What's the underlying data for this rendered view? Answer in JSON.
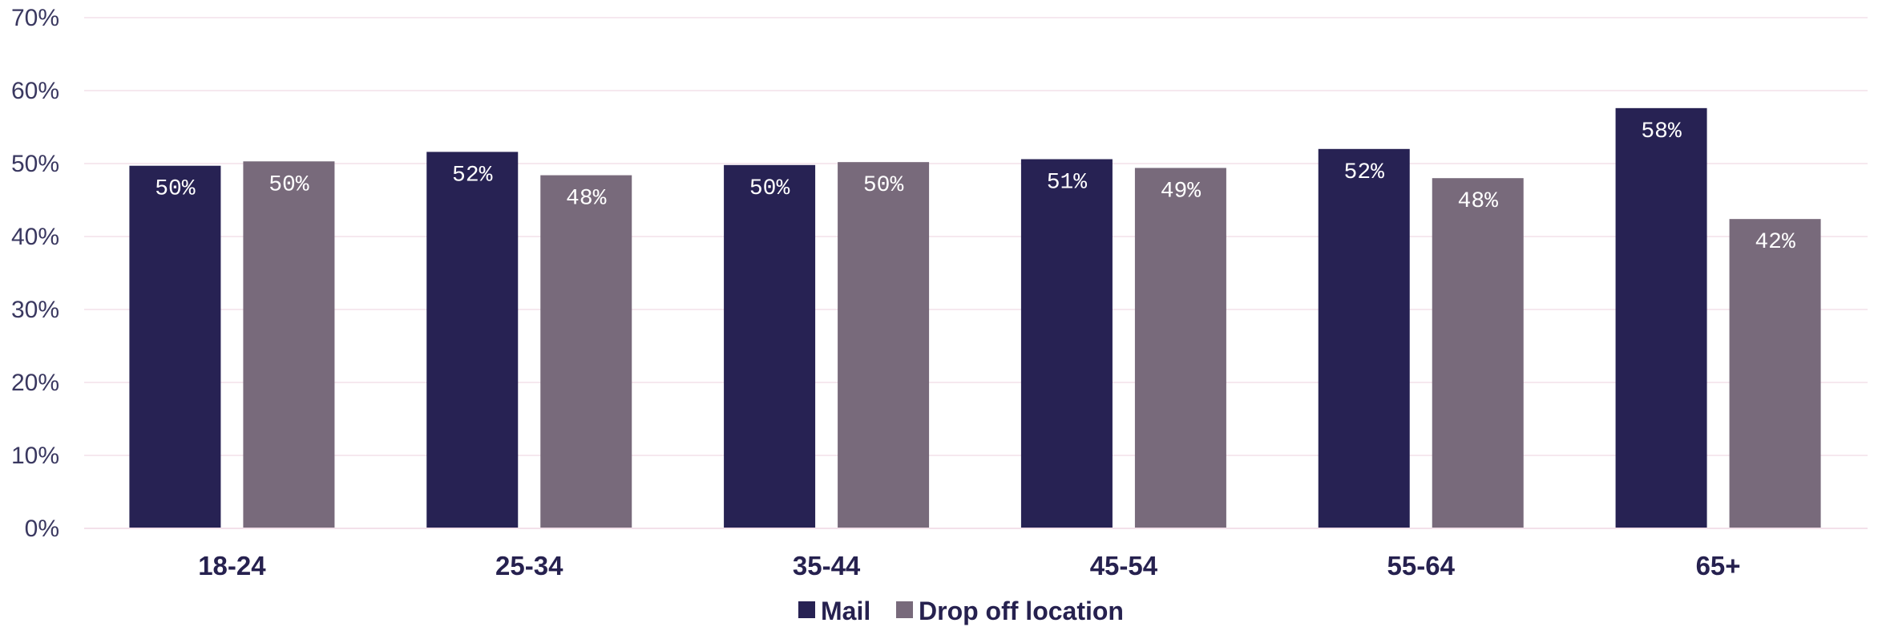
{
  "chart_data": {
    "type": "bar",
    "categories": [
      "18-24",
      "25-34",
      "35-44",
      "45-54",
      "55-64",
      "65+"
    ],
    "series": [
      {
        "name": "Mail",
        "color": "#272253",
        "values": [
          49.7,
          51.6,
          49.8,
          50.6,
          52.0,
          57.6
        ],
        "labels": [
          "50%",
          "52%",
          "50%",
          "51%",
          "52%",
          "58%"
        ]
      },
      {
        "name": "Drop off location",
        "color": "#786a7b",
        "values": [
          50.3,
          48.4,
          50.2,
          49.4,
          48.0,
          42.4
        ],
        "labels": [
          "50%",
          "48%",
          "50%",
          "49%",
          "48%",
          "42%"
        ]
      }
    ],
    "y_ticks": [
      "0%",
      "10%",
      "20%",
      "30%",
      "40%",
      "50%",
      "60%",
      "70%"
    ],
    "ylim": [
      0,
      70
    ],
    "grid": true,
    "grid_color": "#f3e1ea",
    "legend": "bottom-center",
    "title": "",
    "xlabel": "",
    "ylabel": ""
  }
}
